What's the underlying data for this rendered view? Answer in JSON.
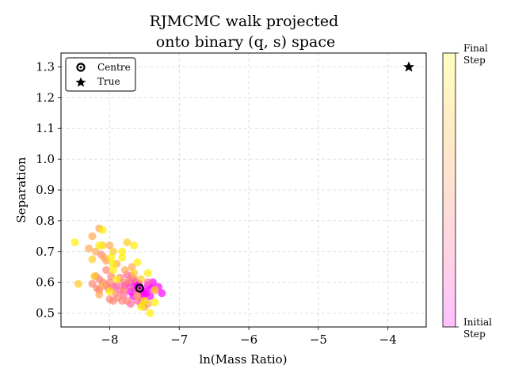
{
  "chart_data": {
    "type": "scatter",
    "title_lines": [
      "RJMCMC walk projected",
      "onto binary (q, s) space"
    ],
    "xlabel": "ln(Mass Ratio)",
    "ylabel": "Separation",
    "xlim": [
      -8.7,
      -3.45
    ],
    "ylim": [
      0.455,
      1.345
    ],
    "xticks": [
      -8,
      -7,
      -6,
      -5,
      -4
    ],
    "xtick_labels": [
      "−8",
      "−7",
      "−6",
      "−5",
      "−4"
    ],
    "yticks": [
      0.5,
      0.6,
      0.7,
      0.8,
      0.9,
      1.0,
      1.1,
      1.2,
      1.3
    ],
    "ytick_labels": [
      "0.5",
      "0.6",
      "0.7",
      "0.8",
      "0.9",
      "1.0",
      "1.1",
      "1.2",
      "1.3"
    ],
    "grid": true,
    "legend": {
      "placement": "top-left",
      "entries": [
        {
          "label": "Centre",
          "marker": "ring"
        },
        {
          "label": "True",
          "marker": "star"
        }
      ]
    },
    "colorbar": {
      "top_label": [
        "Final",
        "Step"
      ],
      "bottom_label": [
        "Initial",
        "Step"
      ],
      "colors": [
        "#ffc0ff",
        "#ffd2e6",
        "#ffe0d2",
        "#ffedc5",
        "#ffffc0"
      ]
    },
    "centre": {
      "x": -7.57,
      "y": 0.581
    },
    "true_point": {
      "x": -3.7,
      "y": 1.3
    },
    "color_scale": [
      "#ff00ff",
      "#ff66aa",
      "#ff8877",
      "#ffaa55",
      "#ffcc22",
      "#ffee00"
    ],
    "points": [
      [
        -7.55,
        0.575,
        0
      ],
      [
        -7.6,
        0.585,
        0
      ],
      [
        -7.5,
        0.57,
        0
      ],
      [
        -7.45,
        0.59,
        0
      ],
      [
        -7.4,
        0.58,
        0
      ],
      [
        -7.35,
        0.575,
        0
      ],
      [
        -7.3,
        0.585,
        0
      ],
      [
        -7.25,
        0.565,
        0
      ],
      [
        -7.65,
        0.58,
        0
      ],
      [
        -7.7,
        0.57,
        0
      ],
      [
        -7.58,
        0.595,
        0
      ],
      [
        -7.52,
        0.56,
        0
      ],
      [
        -7.48,
        0.565,
        0
      ],
      [
        -7.62,
        0.6,
        0
      ],
      [
        -7.42,
        0.555,
        0
      ],
      [
        -7.7,
        0.6,
        0
      ],
      [
        -7.78,
        0.59,
        0
      ],
      [
        -7.38,
        0.6,
        0
      ],
      [
        -7.55,
        0.55,
        0
      ],
      [
        -7.66,
        0.555,
        0
      ],
      [
        -7.62,
        0.57,
        1
      ],
      [
        -7.72,
        0.585,
        1
      ],
      [
        -7.8,
        0.56,
        1
      ],
      [
        -7.85,
        0.575,
        1
      ],
      [
        -7.9,
        0.59,
        1
      ],
      [
        -7.68,
        0.62,
        1
      ],
      [
        -7.75,
        0.625,
        1
      ],
      [
        -7.95,
        0.585,
        1
      ],
      [
        -7.5,
        0.54,
        1
      ],
      [
        -7.45,
        0.6,
        1
      ],
      [
        -7.7,
        0.53,
        1
      ],
      [
        -7.6,
        0.54,
        1
      ],
      [
        -7.88,
        0.55,
        2
      ],
      [
        -8.0,
        0.545,
        2
      ],
      [
        -7.92,
        0.565,
        2
      ],
      [
        -7.8,
        0.6,
        2
      ],
      [
        -8.02,
        0.58,
        2
      ],
      [
        -8.05,
        0.59,
        2
      ],
      [
        -8.1,
        0.6,
        2
      ],
      [
        -8.15,
        0.61,
        2
      ],
      [
        -7.75,
        0.54,
        2
      ],
      [
        -7.95,
        0.54,
        2
      ],
      [
        -8.18,
        0.58,
        2
      ],
      [
        -8.2,
        0.62,
        2
      ],
      [
        -7.98,
        0.62,
        2
      ],
      [
        -8.05,
        0.64,
        2
      ],
      [
        -7.85,
        0.615,
        2
      ],
      [
        -8.12,
        0.69,
        2
      ],
      [
        -7.72,
        0.605,
        2
      ],
      [
        -7.65,
        0.61,
        2
      ],
      [
        -8.0,
        0.6,
        2
      ],
      [
        -7.8,
        0.575,
        2
      ],
      [
        -7.82,
        0.54,
        2
      ],
      [
        -8.15,
        0.575,
        2
      ],
      [
        -7.55,
        0.53,
        2
      ],
      [
        -8.25,
        0.595,
        2
      ],
      [
        -8.2,
        0.7,
        3
      ],
      [
        -8.15,
        0.775,
        3
      ],
      [
        -8.08,
        0.68,
        3
      ],
      [
        -8.3,
        0.71,
        3
      ],
      [
        -8.0,
        0.72,
        3
      ],
      [
        -8.05,
        0.67,
        3
      ],
      [
        -7.78,
        0.64,
        3
      ],
      [
        -7.9,
        0.66,
        3
      ],
      [
        -7.68,
        0.65,
        3
      ],
      [
        -8.15,
        0.56,
        3
      ],
      [
        -8.1,
        0.59,
        3
      ],
      [
        -8.25,
        0.75,
        3
      ],
      [
        -7.5,
        0.52,
        3
      ],
      [
        -7.45,
        0.53,
        3
      ],
      [
        -7.6,
        0.555,
        3
      ],
      [
        -8.22,
        0.62,
        4
      ],
      [
        -8.25,
        0.675,
        4
      ],
      [
        -8.1,
        0.72,
        4
      ],
      [
        -7.95,
        0.7,
        4
      ],
      [
        -7.75,
        0.73,
        4
      ],
      [
        -8.45,
        0.595,
        4
      ],
      [
        -7.55,
        0.61,
        4
      ],
      [
        -7.65,
        0.63,
        4
      ],
      [
        -8.1,
        0.77,
        5
      ],
      [
        -8.5,
        0.73,
        5
      ],
      [
        -8.15,
        0.72,
        5
      ],
      [
        -7.98,
        0.68,
        5
      ],
      [
        -7.95,
        0.66,
        5
      ],
      [
        -7.82,
        0.7,
        5
      ],
      [
        -7.82,
        0.68,
        5
      ],
      [
        -7.65,
        0.72,
        5
      ],
      [
        -7.6,
        0.665,
        5
      ],
      [
        -7.95,
        0.64,
        5
      ],
      [
        -7.45,
        0.63,
        5
      ],
      [
        -7.35,
        0.575,
        5
      ],
      [
        -7.35,
        0.535,
        5
      ],
      [
        -7.55,
        0.52,
        5
      ],
      [
        -7.42,
        0.5,
        5
      ],
      [
        -7.9,
        0.61,
        5
      ],
      [
        -8.0,
        0.57,
        5
      ],
      [
        -7.5,
        0.54,
        5
      ]
    ]
  }
}
